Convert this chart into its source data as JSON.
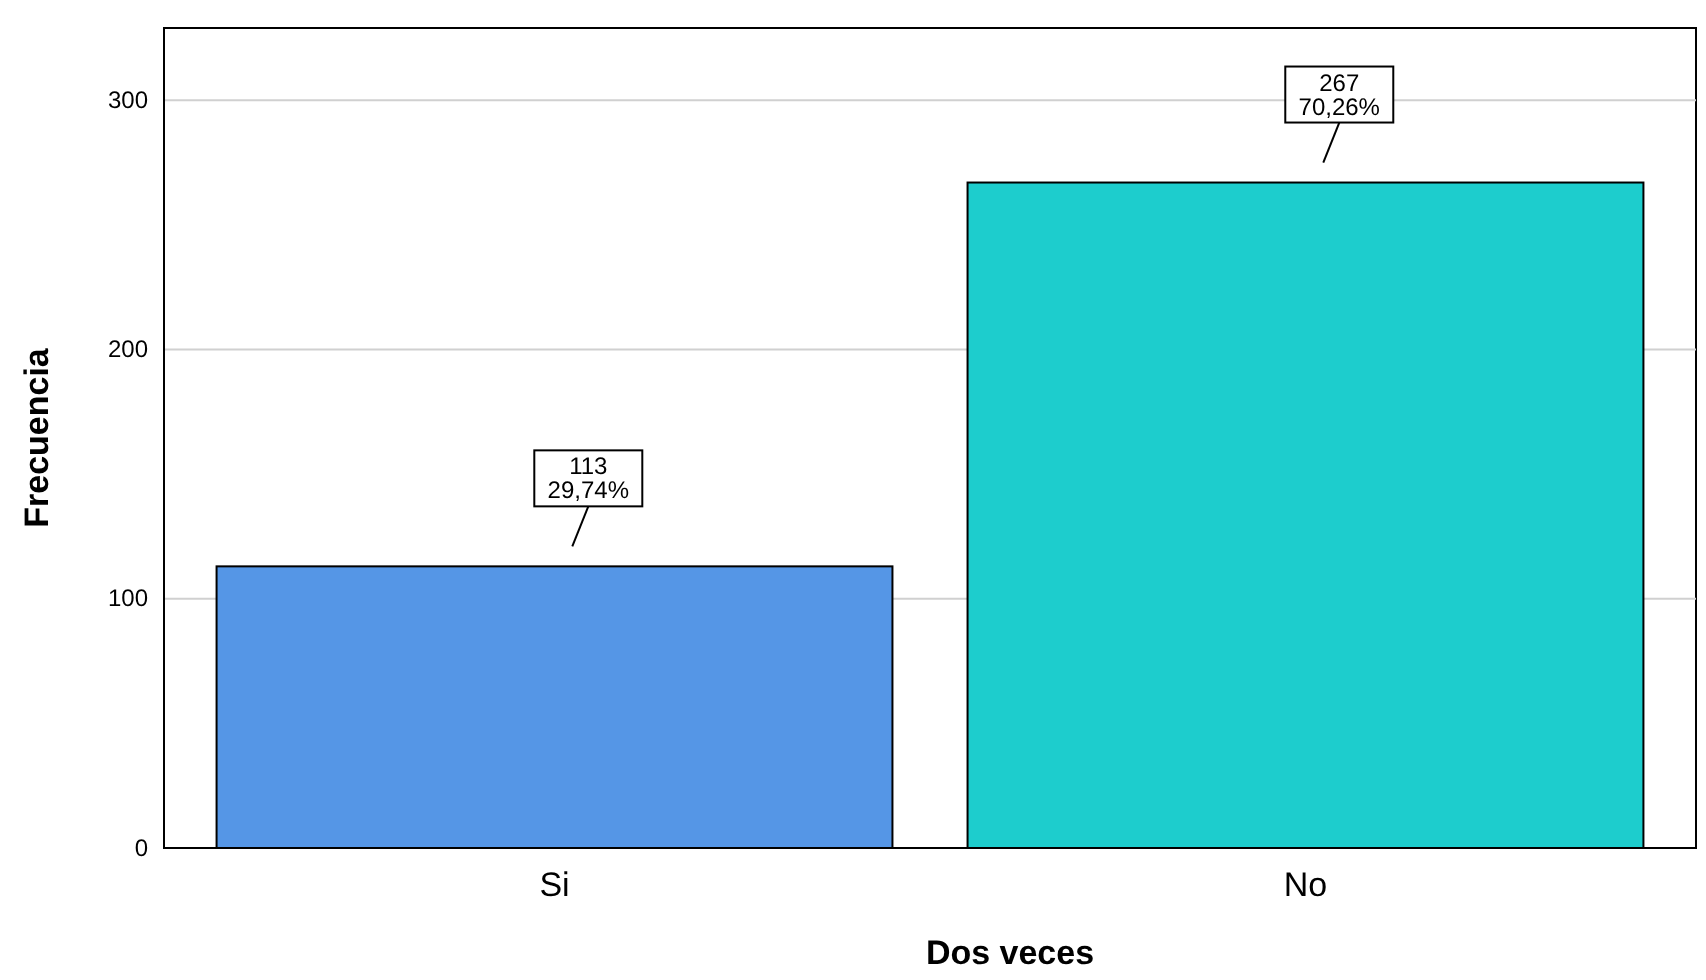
{
  "chart_data": {
    "type": "bar",
    "xlabel": "Dos veces",
    "ylabel": "Frecuencia",
    "categories": [
      "Si",
      "No"
    ],
    "values": [
      113,
      267
    ],
    "colors": [
      "#5596e6",
      "#1dcdcd"
    ],
    "value_labels": [
      "113\n29,74%",
      "267\n70,26%"
    ],
    "ylim": [
      0,
      329
    ],
    "yticks": [
      0,
      100,
      200,
      300
    ],
    "grid": "y"
  }
}
